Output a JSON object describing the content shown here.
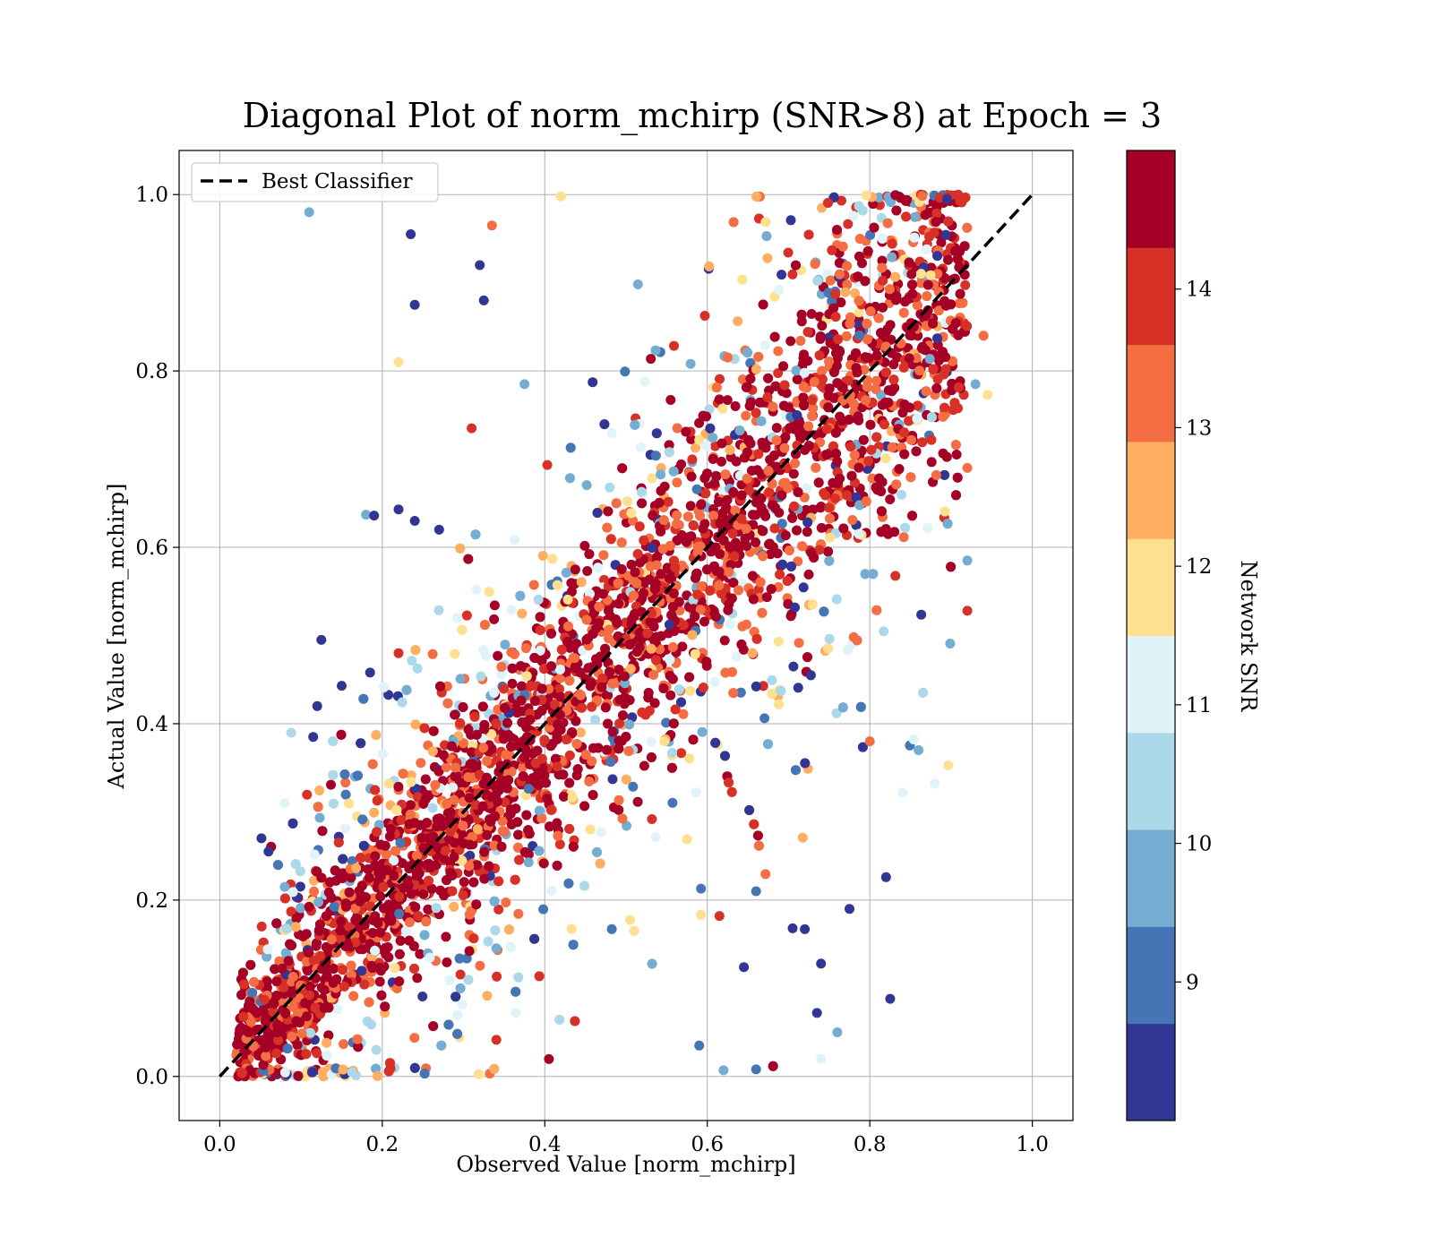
{
  "chart_data": {
    "type": "scatter",
    "title": "Diagonal Plot of norm_mchirp (SNR>8) at Epoch = 3",
    "xlabel": "Observed Value [norm_mchirp]",
    "ylabel": "Actual Value [norm_mchirp]",
    "xlim": [
      -0.05,
      1.05
    ],
    "ylim": [
      -0.05,
      1.05
    ],
    "xticks": [
      0.0,
      0.2,
      0.4,
      0.6,
      0.8,
      1.0
    ],
    "yticks": [
      0.0,
      0.2,
      0.4,
      0.6,
      0.8,
      1.0
    ],
    "x_tick_labels": [
      "0.0",
      "0.2",
      "0.4",
      "0.6",
      "0.8",
      "1.0"
    ],
    "y_tick_labels": [
      "0.0",
      "0.2",
      "0.4",
      "0.6",
      "0.8",
      "1.0"
    ],
    "grid": true,
    "legend": {
      "position": "upper-left",
      "entries": [
        "Best Classifier"
      ]
    },
    "reference_line": {
      "name": "Best Classifier",
      "x": [
        0.0,
        1.0
      ],
      "y": [
        0.0,
        1.0
      ],
      "style": "dashed",
      "color": "#000000"
    },
    "colorbar": {
      "label": "Network SNR",
      "range": [
        8,
        15
      ],
      "ticks": [
        9,
        10,
        11,
        12,
        13,
        14
      ],
      "tick_labels": [
        "9",
        "10",
        "11",
        "12",
        "13",
        "14"
      ],
      "colors": [
        "#313695",
        "#4575b4",
        "#74add1",
        "#abd9e9",
        "#e0f3f8",
        "#fee090",
        "#fdae61",
        "#f46d43",
        "#d73027",
        "#a50026"
      ]
    },
    "series": [
      {
        "color_by": "Network SNR",
        "points_sample": [
          [
            0.11,
            0.98,
            10
          ],
          [
            0.235,
            0.955,
            8
          ],
          [
            0.24,
            0.875,
            8
          ],
          [
            0.335,
            0.965,
            13
          ],
          [
            0.22,
            0.81,
            12
          ],
          [
            0.32,
            0.92,
            8
          ],
          [
            0.325,
            0.88,
            8
          ],
          [
            0.42,
            0.998,
            12
          ],
          [
            0.375,
            0.785,
            10
          ],
          [
            0.31,
            0.735,
            14
          ],
          [
            0.18,
            0.637,
            10
          ],
          [
            0.19,
            0.636,
            8
          ],
          [
            0.22,
            0.643,
            8
          ],
          [
            0.24,
            0.63,
            8
          ],
          [
            0.27,
            0.62,
            8
          ],
          [
            0.125,
            0.495,
            8
          ],
          [
            0.12,
            0.42,
            8
          ],
          [
            0.15,
            0.443,
            8
          ],
          [
            0.185,
            0.458,
            8
          ],
          [
            0.22,
            0.48,
            14
          ],
          [
            0.06,
            0.255,
            8
          ],
          [
            0.08,
            0.31,
            11
          ],
          [
            0.115,
            0.385,
            8
          ],
          [
            0.08,
            0.215,
            10
          ],
          [
            0.04,
            0.095,
            9
          ],
          [
            0.66,
            0.21,
            9
          ],
          [
            0.705,
            0.168,
            8
          ],
          [
            0.72,
            0.167,
            8
          ],
          [
            0.74,
            0.128,
            8
          ],
          [
            0.775,
            0.19,
            8
          ],
          [
            0.82,
            0.226,
            8
          ],
          [
            0.825,
            0.088,
            8
          ],
          [
            0.76,
            0.05,
            10
          ],
          [
            0.74,
            0.02,
            11
          ],
          [
            0.66,
            0.008,
            9
          ],
          [
            0.62,
            0.007,
            10
          ],
          [
            0.735,
            0.072,
            8
          ],
          [
            0.88,
            0.332,
            11
          ],
          [
            0.86,
            0.37,
            10
          ],
          [
            0.8,
            0.38,
            13
          ],
          [
            0.94,
            0.84,
            13
          ],
          [
            0.945,
            0.773,
            12
          ],
          [
            0.93,
            0.785,
            10
          ],
          [
            0.92,
            0.585,
            10
          ],
          [
            0.92,
            0.528,
            14
          ],
          [
            0.92,
            0.69,
            13
          ],
          [
            0.615,
            0.182,
            14
          ],
          [
            0.645,
            0.124,
            8
          ],
          [
            0.59,
            0.035,
            9
          ],
          [
            0.51,
            0.165,
            12
          ]
        ]
      }
    ]
  }
}
